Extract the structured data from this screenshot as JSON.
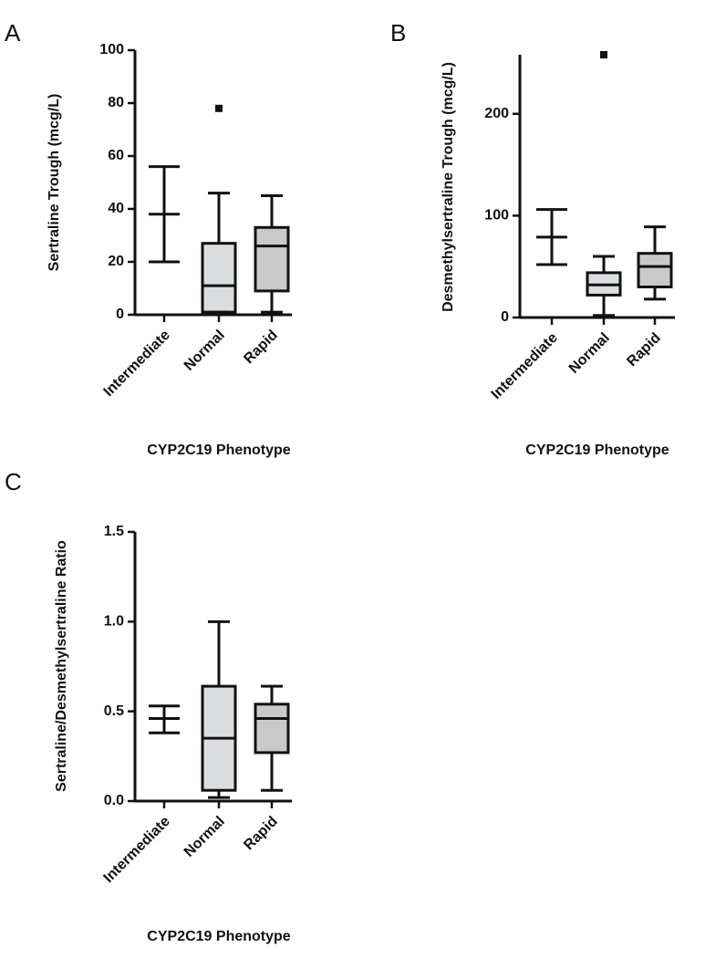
{
  "chart_data": [
    {
      "type": "box",
      "panel": "A",
      "ylabel": "Sertraline Trough (mcg/L)",
      "xlabel": "CYP2C19 Phenotype",
      "categories": [
        "Intermediate",
        "Normal",
        "Rapid"
      ],
      "min": [
        20,
        1,
        1
      ],
      "q1": [
        null,
        1,
        9
      ],
      "median": [
        38,
        11,
        26
      ],
      "q3": [
        null,
        27,
        33
      ],
      "max": [
        56,
        46,
        45
      ],
      "outliers": [
        [],
        [
          78
        ],
        []
      ],
      "colors": [
        null,
        "#dcdde0",
        "#c9c9c9"
      ],
      "ylim": [
        0,
        100
      ],
      "yticks": [
        0,
        20,
        40,
        60,
        80,
        100
      ]
    },
    {
      "type": "box",
      "panel": "B",
      "ylabel": "Desmethylsertraline Trough (mcg/L)",
      "xlabel": "CYP2C19 Phenotype",
      "categories": [
        "Intermediate",
        "Normal",
        "Rapid"
      ],
      "min": [
        52,
        2,
        18
      ],
      "q1": [
        null,
        22,
        30
      ],
      "median": [
        79,
        32,
        50
      ],
      "q3": [
        null,
        44,
        63
      ],
      "max": [
        106,
        60,
        89
      ],
      "outliers": [
        [],
        [
          258
        ],
        []
      ],
      "colors": [
        null,
        "#dcdde0",
        "#c9c9c9"
      ],
      "ylim": [
        0,
        258
      ],
      "yticks": [
        0,
        100,
        200
      ]
    },
    {
      "type": "box",
      "panel": "C",
      "ylabel": "Sertraline/Desmethylsertraline Ratio",
      "xlabel": "CYP2C19 Phenotype",
      "categories": [
        "Intermediate",
        "Normal",
        "Rapid"
      ],
      "min": [
        0.38,
        0.02,
        0.06
      ],
      "q1": [
        null,
        0.06,
        0.27
      ],
      "median": [
        0.46,
        0.35,
        0.46
      ],
      "q3": [
        null,
        0.64,
        0.54
      ],
      "max": [
        0.53,
        1.0,
        0.64
      ],
      "outliers": [
        [],
        [],
        []
      ],
      "colors": [
        null,
        "#dcdde0",
        "#c9c9c9"
      ],
      "ylim": [
        0,
        1.5
      ],
      "yticks": [
        {
          "value": 0,
          "label": "0.0"
        },
        {
          "value": 0.5,
          "label": "0.5"
        },
        {
          "value": 1,
          "label": "1.0"
        },
        {
          "value": 1.5,
          "label": "1.5"
        }
      ]
    }
  ]
}
